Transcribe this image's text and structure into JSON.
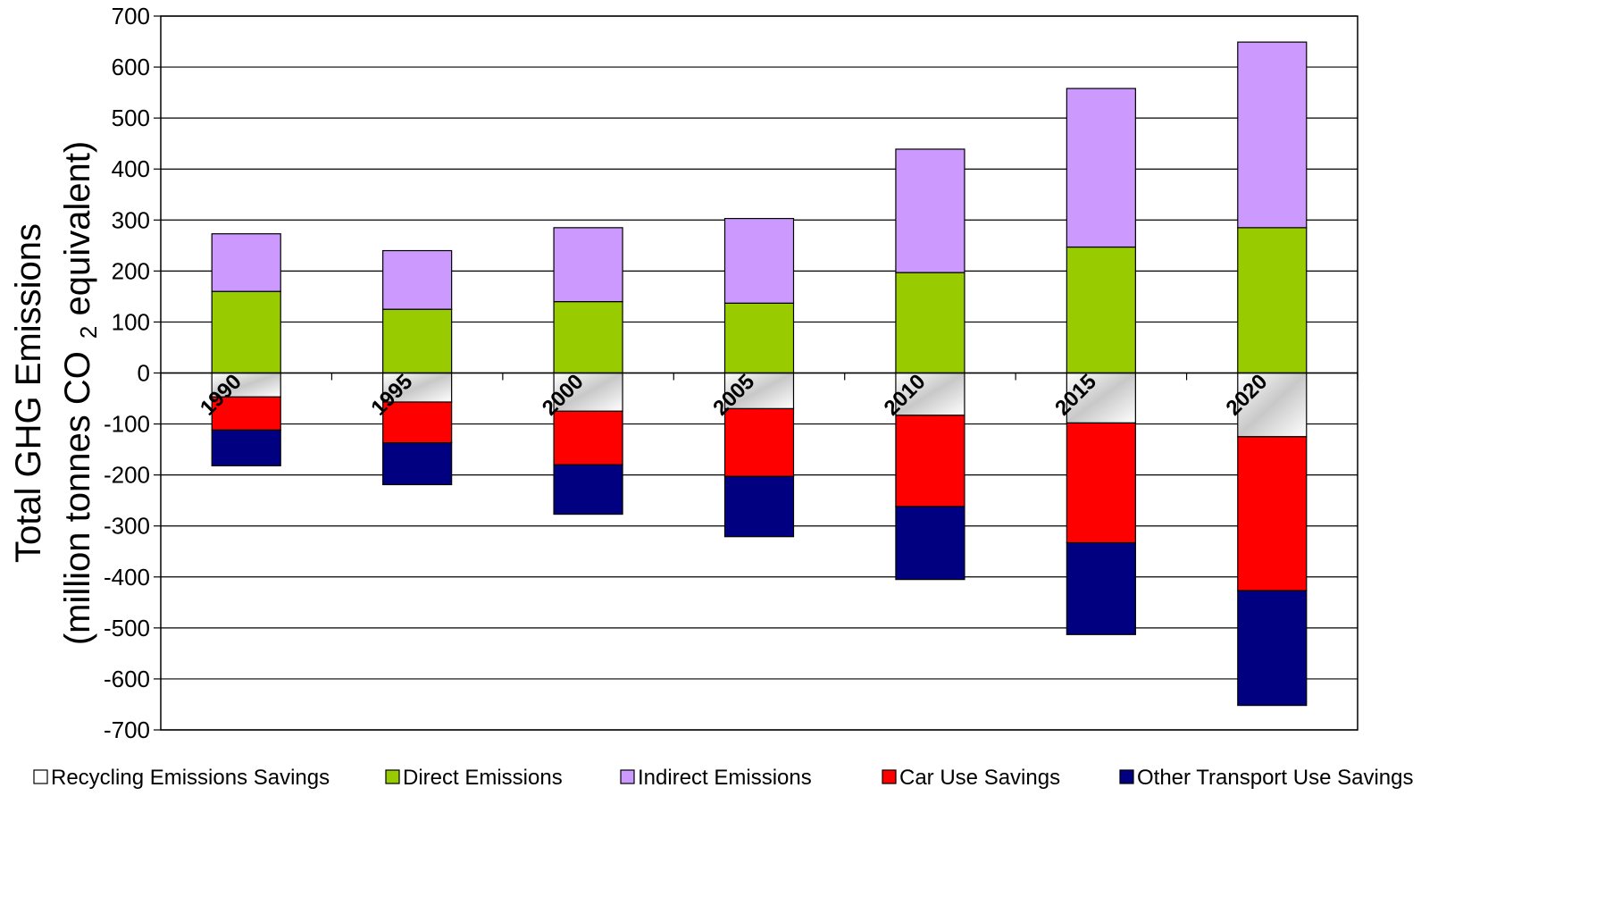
{
  "chart_data": {
    "type": "bar",
    "stacked": true,
    "categories": [
      "1990",
      "1995",
      "2000",
      "2005",
      "2010",
      "2015",
      "2020"
    ],
    "ylabel_line1": "Total GHG Emissions",
    "ylabel_line2_prefix": "(million tonnes CO",
    "ylabel_subscript": "2",
    "ylabel_line2_suffix": " equivalent)",
    "ylim": [
      -700,
      700
    ],
    "yticks": [
      700,
      600,
      500,
      400,
      300,
      200,
      100,
      0,
      -100,
      -200,
      -300,
      -400,
      -500,
      -600,
      -700
    ],
    "grid": true,
    "legend_position": "bottom",
    "series": [
      {
        "name": "Recycling Emissions Savings",
        "color": "#ffffff",
        "gradient": true,
        "values": [
          -47,
          -57,
          -75,
          -70,
          -83,
          -98,
          -125
        ]
      },
      {
        "name": "Direct Emissions",
        "color": "#99cc00",
        "values": [
          160,
          125,
          140,
          137,
          197,
          247,
          285
        ]
      },
      {
        "name": "Indirect Emissions",
        "color": "#cc99ff",
        "values": [
          113,
          115,
          145,
          166,
          242,
          311,
          364
        ]
      },
      {
        "name": "Car Use Savings",
        "color": "#ff0000",
        "values": [
          -65,
          -80,
          -105,
          -133,
          -179,
          -235,
          -302
        ]
      },
      {
        "name": "Other Transport Use Savings",
        "color": "#000080",
        "values": [
          -70,
          -82,
          -97,
          -118,
          -143,
          -180,
          -225
        ]
      }
    ]
  }
}
